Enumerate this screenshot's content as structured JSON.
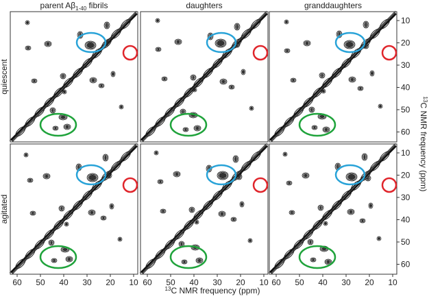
{
  "column_titles": [
    {
      "text": "parent Aβ",
      "subscript": "1-40",
      "suffix": " fibrils"
    },
    {
      "text": "daughters"
    },
    {
      "text": "granddaughters"
    }
  ],
  "row_labels": [
    "quiescent",
    "agitated"
  ],
  "x_ticks": [
    60,
    50,
    40,
    30,
    20,
    10
  ],
  "y_ticks": [
    10,
    20,
    30,
    40,
    50,
    60
  ],
  "x_label": {
    "superscript": "13",
    "text": "C NMR frequency (ppm)"
  },
  "y_label": {
    "superscript": "13",
    "text": "C NMR frequency (ppm)"
  }
}
